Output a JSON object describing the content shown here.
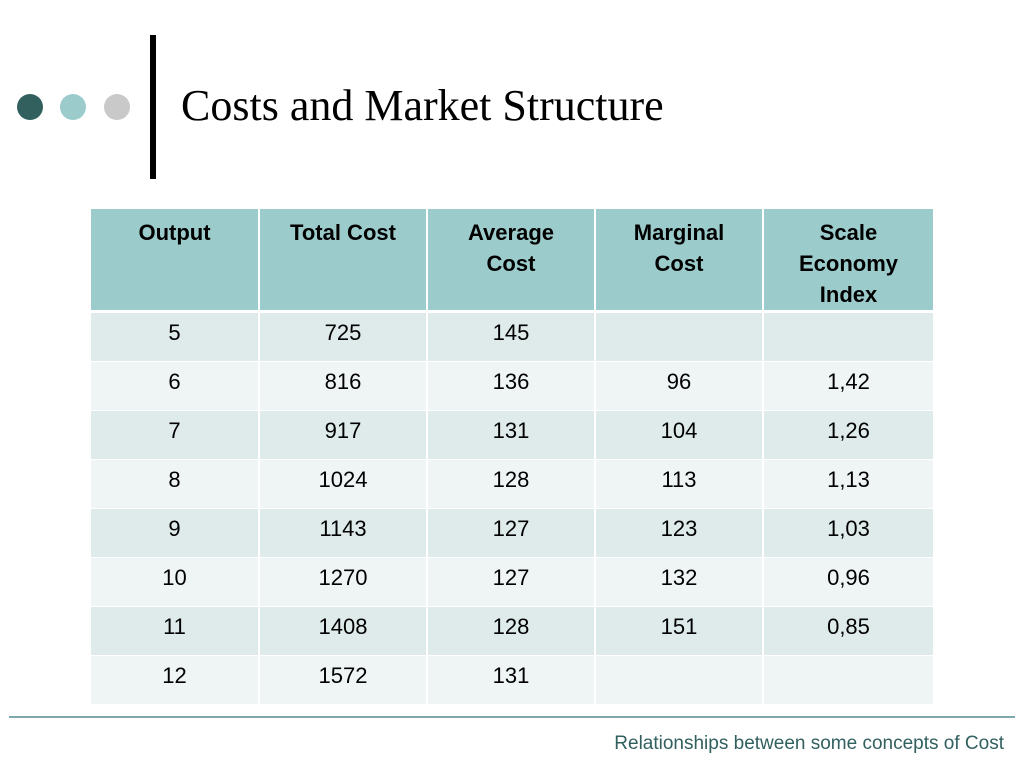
{
  "slide": {
    "title": "Costs and Market Structure",
    "footer": "Relationships between some concepts of Cost",
    "colors": {
      "dot_dark": "#31605f",
      "dot_light": "#9ccbcc",
      "dot_gray": "#c9c9c9",
      "header_bg": "#9ccbcc",
      "row_odd_bg": "#deebea",
      "row_even_bg": "#eff5f5",
      "footer_text": "#31605f"
    }
  },
  "table": {
    "headers": [
      "Output",
      "Total Cost",
      "Average\nCost",
      "Marginal\nCost",
      "Scale\nEconomy\nIndex"
    ],
    "rows": [
      [
        "5",
        "725",
        "145",
        "",
        ""
      ],
      [
        "6",
        "816",
        "136",
        "96",
        "1,42"
      ],
      [
        "7",
        "917",
        "131",
        "104",
        "1,26"
      ],
      [
        "8",
        "1024",
        "128",
        "113",
        "1,13"
      ],
      [
        "9",
        "1143",
        "127",
        "123",
        "1,03"
      ],
      [
        "10",
        "1270",
        "127",
        "132",
        "0,96"
      ],
      [
        "11",
        "1408",
        "128",
        "151",
        "0,85"
      ],
      [
        "12",
        "1572",
        "131",
        "",
        ""
      ]
    ]
  }
}
